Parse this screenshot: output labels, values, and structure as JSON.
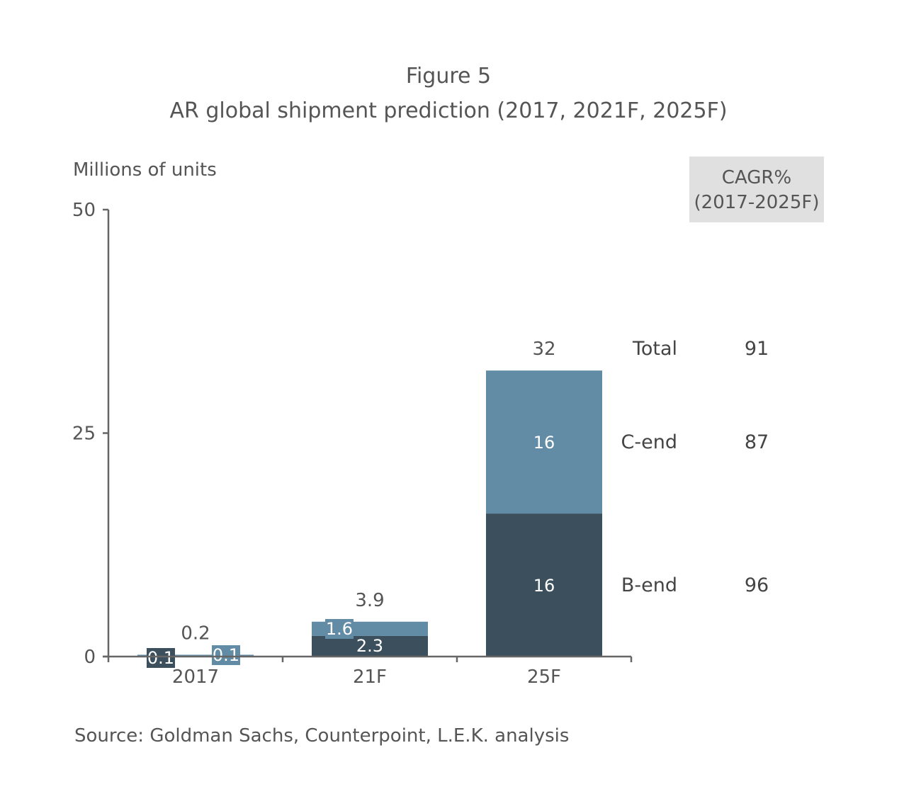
{
  "chart_data": {
    "type": "bar",
    "stacked": true,
    "figure_label": "Figure 5",
    "title": "AR global shipment prediction (2017, 2021F, 2025F)",
    "ylabel": "Millions of units",
    "xlabel": "",
    "ylim": [
      0,
      50
    ],
    "yticks": [
      "0",
      "25",
      "50"
    ],
    "categories": [
      "2017",
      "21F",
      "25F"
    ],
    "series": [
      {
        "name": "B-end",
        "values": [
          0.1,
          2.3,
          16
        ],
        "labels": [
          "0.1",
          "2.3",
          "16"
        ],
        "color": "#3b4f5c"
      },
      {
        "name": "C-end",
        "values": [
          0.1,
          1.6,
          16
        ],
        "labels": [
          "0.1",
          "1.6",
          "16"
        ],
        "color": "#628ba5"
      }
    ],
    "totals": [
      "0.2",
      "3.9",
      "32"
    ],
    "grid": false,
    "cagr_table": {
      "header": "CAGR%",
      "header_sub": "(2017-2025F)",
      "rows": [
        {
          "label": "Total",
          "value": "91"
        },
        {
          "label": "C-end",
          "value": "87"
        },
        {
          "label": "B-end",
          "value": "96"
        }
      ]
    },
    "source": "Source: Goldman Sachs, Counterpoint, L.E.K. analysis"
  }
}
